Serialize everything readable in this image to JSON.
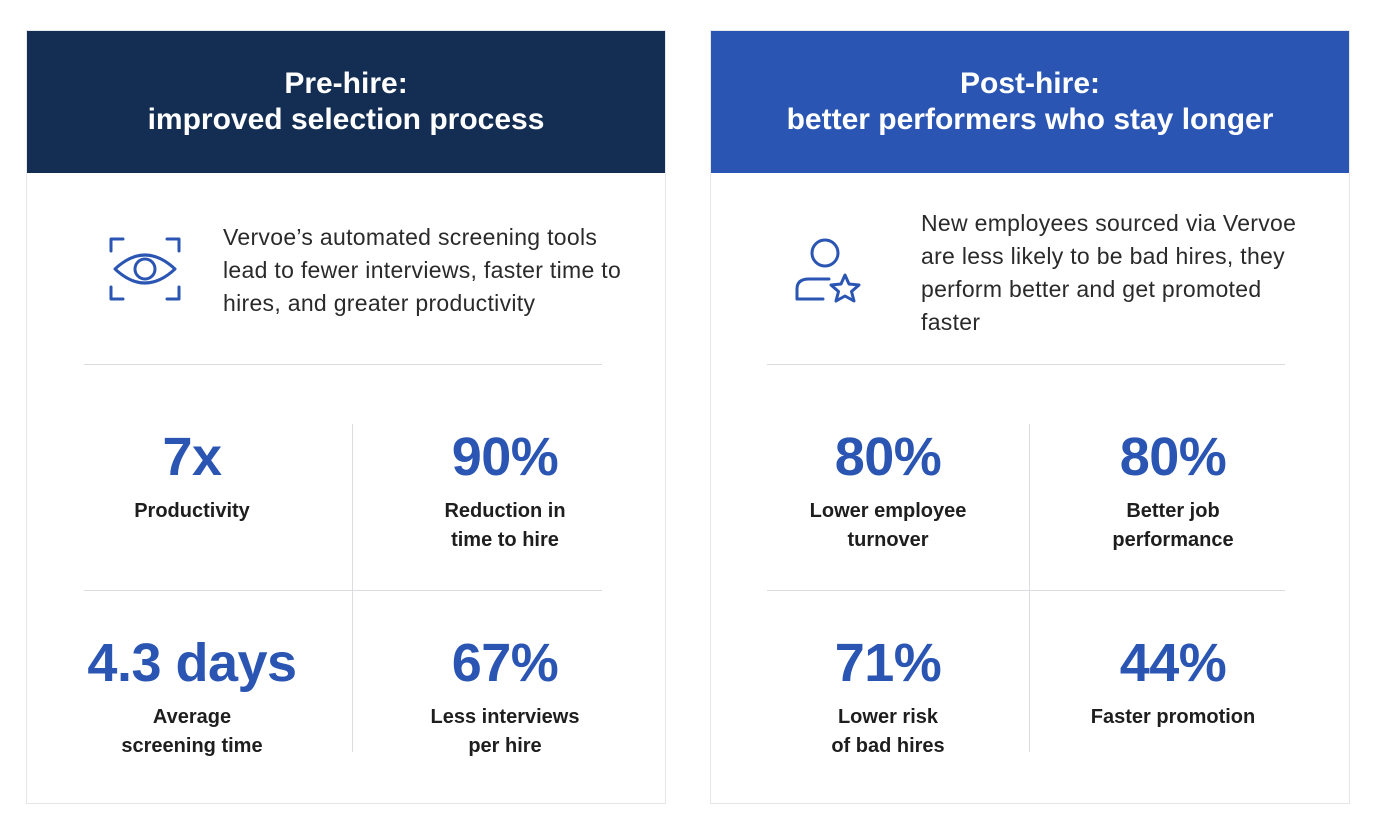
{
  "colors": {
    "dark_navy": "#132e52",
    "brand_blue": "#2a55b3"
  },
  "left_card": {
    "title_line1": "Pre-hire:",
    "title_line2": "improved selection process",
    "icon": "eye-scan-icon",
    "intro": "Vervoe’s automated screening tools lead to fewer interviews, faster time to hires, and greater productivity",
    "stats": [
      {
        "value": "7x",
        "label": "Productivity"
      },
      {
        "value": "90%",
        "label": "Reduction in\ntime to hire"
      },
      {
        "value": "4.3 days",
        "label": "Average\nscreening time"
      },
      {
        "value": "67%",
        "label": "Less interviews\nper hire"
      }
    ]
  },
  "right_card": {
    "title_line1": "Post-hire:",
    "title_line2": "better performers who stay longer",
    "icon": "user-star-icon",
    "intro": "New employees sourced via Vervoe are less likely to be bad hires, they perform better and get promoted faster",
    "stats": [
      {
        "value": "80%",
        "label": "Lower employee\nturnover"
      },
      {
        "value": "80%",
        "label": "Better job\nperformance"
      },
      {
        "value": "71%",
        "label": "Lower risk\nof bad hires"
      },
      {
        "value": "44%",
        "label": "Faster promotion"
      }
    ]
  }
}
